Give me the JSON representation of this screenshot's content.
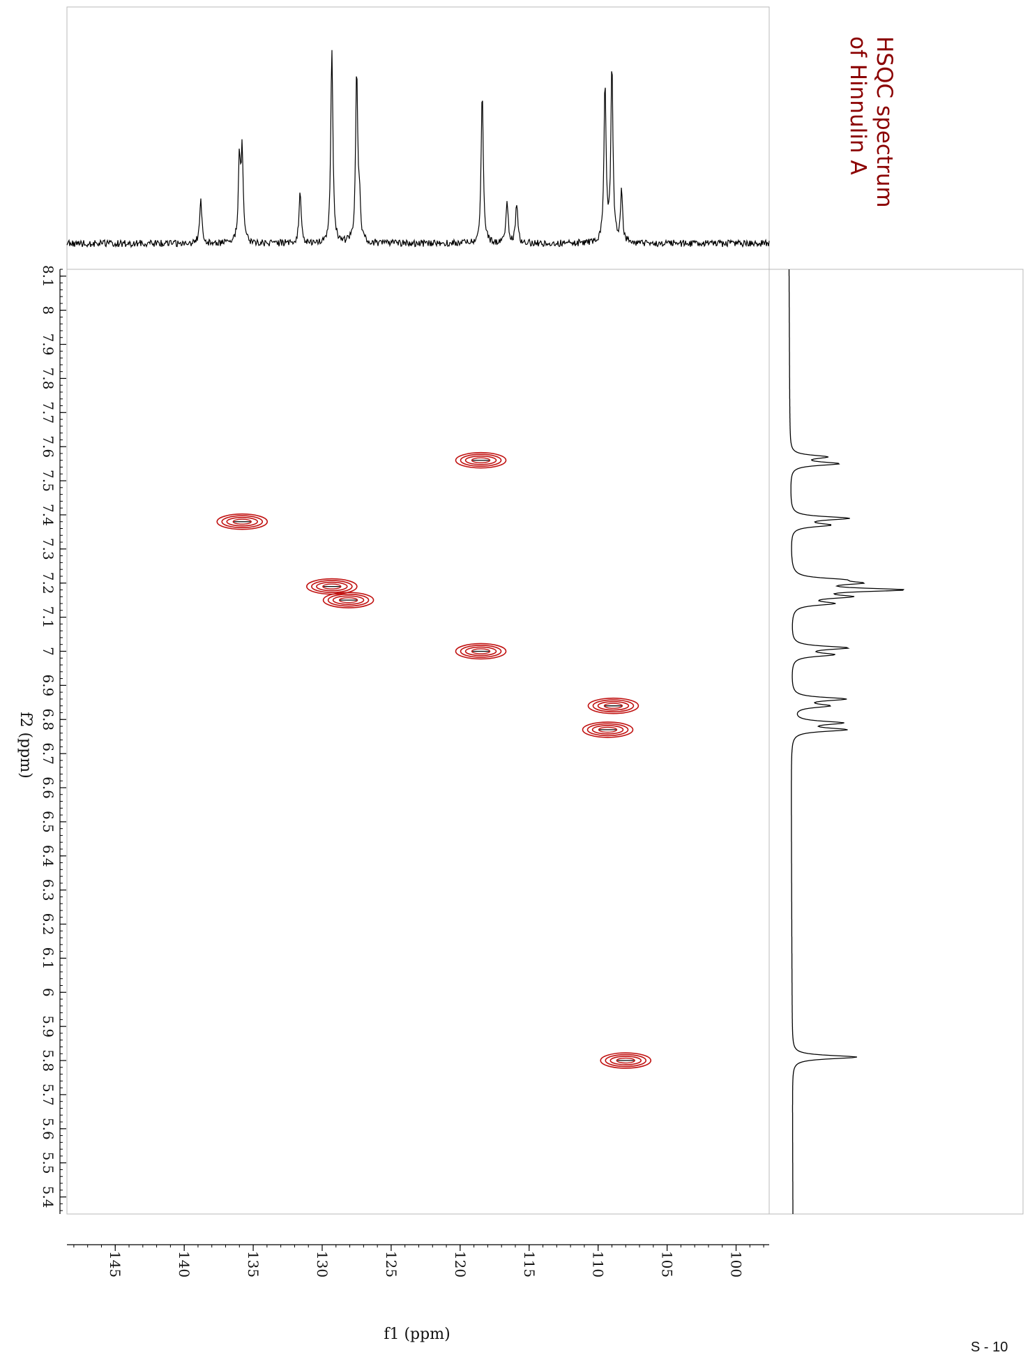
{
  "page_number": "S - 10",
  "colors": {
    "contour": "#c0100f",
    "trace": "#000000",
    "title": "#8b0000",
    "frame": "#b9b9b9"
  },
  "chart_data": {
    "type": "contour",
    "title": "HSQC spectrum\nof Hinnulin A",
    "xlabel": "f1 (ppm)",
    "ylabel": "f2 (ppm)",
    "xlim": [
      148.5,
      97.6
    ],
    "ylim": [
      5.35,
      8.12
    ],
    "x_ticks": [
      145,
      140,
      135,
      130,
      125,
      120,
      115,
      110,
      105,
      100
    ],
    "y_ticks": [
      8.1,
      8,
      7.9,
      7.8,
      7.7,
      7.6,
      7.5,
      7.4,
      7.3,
      7.2,
      7.1,
      7,
      6.9,
      6.8,
      6.7,
      6.6,
      6.5,
      6.4,
      6.3,
      6.2,
      6.1,
      6,
      5.9,
      5.8,
      5.7,
      5.6,
      5.5,
      5.4
    ],
    "cross_peaks": [
      {
        "f1": 118.5,
        "f2": 7.56
      },
      {
        "f1": 135.8,
        "f2": 7.38
      },
      {
        "f1": 129.3,
        "f2": 7.19
      },
      {
        "f1": 128.1,
        "f2": 7.15
      },
      {
        "f1": 118.5,
        "f2": 7.0
      },
      {
        "f1": 108.9,
        "f2": 6.84
      },
      {
        "f1": 109.3,
        "f2": 6.77
      },
      {
        "f1": 108.0,
        "f2": 5.8
      }
    ],
    "f1_projection_peaks": [
      {
        "ppm": 138.8,
        "height": 0.23
      },
      {
        "ppm": 136.0,
        "height": 0.4
      },
      {
        "ppm": 135.8,
        "height": 0.43
      },
      {
        "ppm": 131.6,
        "height": 0.25
      },
      {
        "ppm": 129.3,
        "height": 0.97
      },
      {
        "ppm": 127.5,
        "height": 0.84
      },
      {
        "ppm": 127.3,
        "height": 0.19
      },
      {
        "ppm": 118.4,
        "height": 0.76
      },
      {
        "ppm": 116.6,
        "height": 0.21
      },
      {
        "ppm": 115.9,
        "height": 0.2
      },
      {
        "ppm": 109.5,
        "height": 0.77
      },
      {
        "ppm": 109.0,
        "height": 0.86
      },
      {
        "ppm": 108.3,
        "height": 0.25
      }
    ],
    "f2_projection_peaks": [
      {
        "ppm": 7.57,
        "height": 0.33
      },
      {
        "ppm": 7.55,
        "height": 0.45
      },
      {
        "ppm": 7.39,
        "height": 0.54
      },
      {
        "ppm": 7.37,
        "height": 0.35
      },
      {
        "ppm": 7.21,
        "height": 0.35
      },
      {
        "ppm": 7.2,
        "height": 0.52
      },
      {
        "ppm": 7.18,
        "height": 1.0
      },
      {
        "ppm": 7.16,
        "height": 0.48
      },
      {
        "ppm": 7.14,
        "height": 0.36
      },
      {
        "ppm": 7.01,
        "height": 0.52
      },
      {
        "ppm": 6.99,
        "height": 0.38
      },
      {
        "ppm": 6.86,
        "height": 0.5
      },
      {
        "ppm": 6.84,
        "height": 0.33
      },
      {
        "ppm": 6.79,
        "height": 0.46
      },
      {
        "ppm": 6.77,
        "height": 0.5
      },
      {
        "ppm": 5.81,
        "height": 0.62
      }
    ]
  }
}
